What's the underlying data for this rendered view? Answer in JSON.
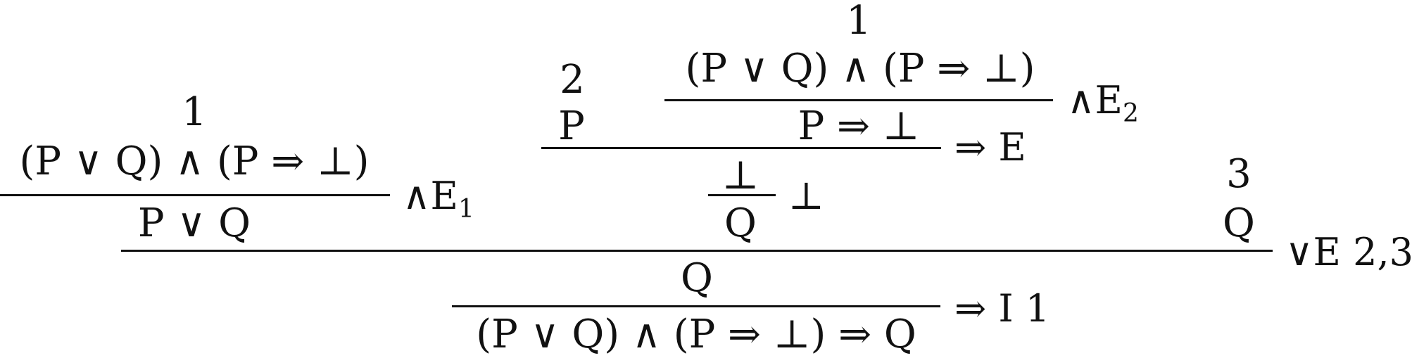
{
  "discharge_labels": {
    "a1_top": "1",
    "a1_left": "1",
    "a2": "2",
    "a3": "3"
  },
  "formulas": {
    "conj_top": "(P ∨ Q) ∧ (P ⇒ ⊥)",
    "conj_left": "(P ∨ Q) ∧ (P ⇒ ⊥)",
    "p_assume": "P",
    "p_imp_bot": "P ⇒ ⊥",
    "bot": "⊥",
    "q_mid": "Q",
    "p_or_q": "P ∨ Q",
    "q_assume": "Q",
    "q_result": "Q",
    "conclusion": "(P ∨ Q) ∧ (P ⇒ ⊥) ⇒ Q"
  },
  "rules": {
    "and_e2": "∧E",
    "and_e2_sub": "2",
    "imp_e": "⇒ E",
    "bot_e": "⊥",
    "and_e1": "∧E",
    "and_e1_sub": "1",
    "or_e": "∨E",
    "or_e_idx": "2,3",
    "imp_i": "⇒ I",
    "imp_i_idx": "1"
  },
  "colors": {
    "ink": "#111111",
    "background": "#ffffff"
  }
}
